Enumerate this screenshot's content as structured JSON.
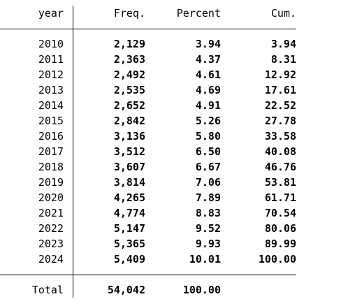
{
  "table": {
    "headers": {
      "year": "year",
      "freq": "Freq.",
      "percent": "Percent",
      "cum": "Cum."
    },
    "rows": [
      {
        "year": "2010",
        "freq": "2,129",
        "percent": "3.94",
        "cum": "3.94"
      },
      {
        "year": "2011",
        "freq": "2,363",
        "percent": "4.37",
        "cum": "8.31"
      },
      {
        "year": "2012",
        "freq": "2,492",
        "percent": "4.61",
        "cum": "12.92"
      },
      {
        "year": "2013",
        "freq": "2,535",
        "percent": "4.69",
        "cum": "17.61"
      },
      {
        "year": "2014",
        "freq": "2,652",
        "percent": "4.91",
        "cum": "22.52"
      },
      {
        "year": "2015",
        "freq": "2,842",
        "percent": "5.26",
        "cum": "27.78"
      },
      {
        "year": "2016",
        "freq": "3,136",
        "percent": "5.80",
        "cum": "33.58"
      },
      {
        "year": "2017",
        "freq": "3,512",
        "percent": "6.50",
        "cum": "40.08"
      },
      {
        "year": "2018",
        "freq": "3,607",
        "percent": "6.67",
        "cum": "46.76"
      },
      {
        "year": "2019",
        "freq": "3,814",
        "percent": "7.06",
        "cum": "53.81"
      },
      {
        "year": "2020",
        "freq": "4,265",
        "percent": "7.89",
        "cum": "61.71"
      },
      {
        "year": "2021",
        "freq": "4,774",
        "percent": "8.83",
        "cum": "70.54"
      },
      {
        "year": "2022",
        "freq": "5,147",
        "percent": "9.52",
        "cum": "80.06"
      },
      {
        "year": "2023",
        "freq": "5,365",
        "percent": "9.93",
        "cum": "89.99"
      },
      {
        "year": "2024",
        "freq": "5,409",
        "percent": "10.01",
        "cum": "100.00"
      }
    ],
    "total": {
      "label": "Total",
      "freq": "54,042",
      "percent": "100.00"
    }
  }
}
